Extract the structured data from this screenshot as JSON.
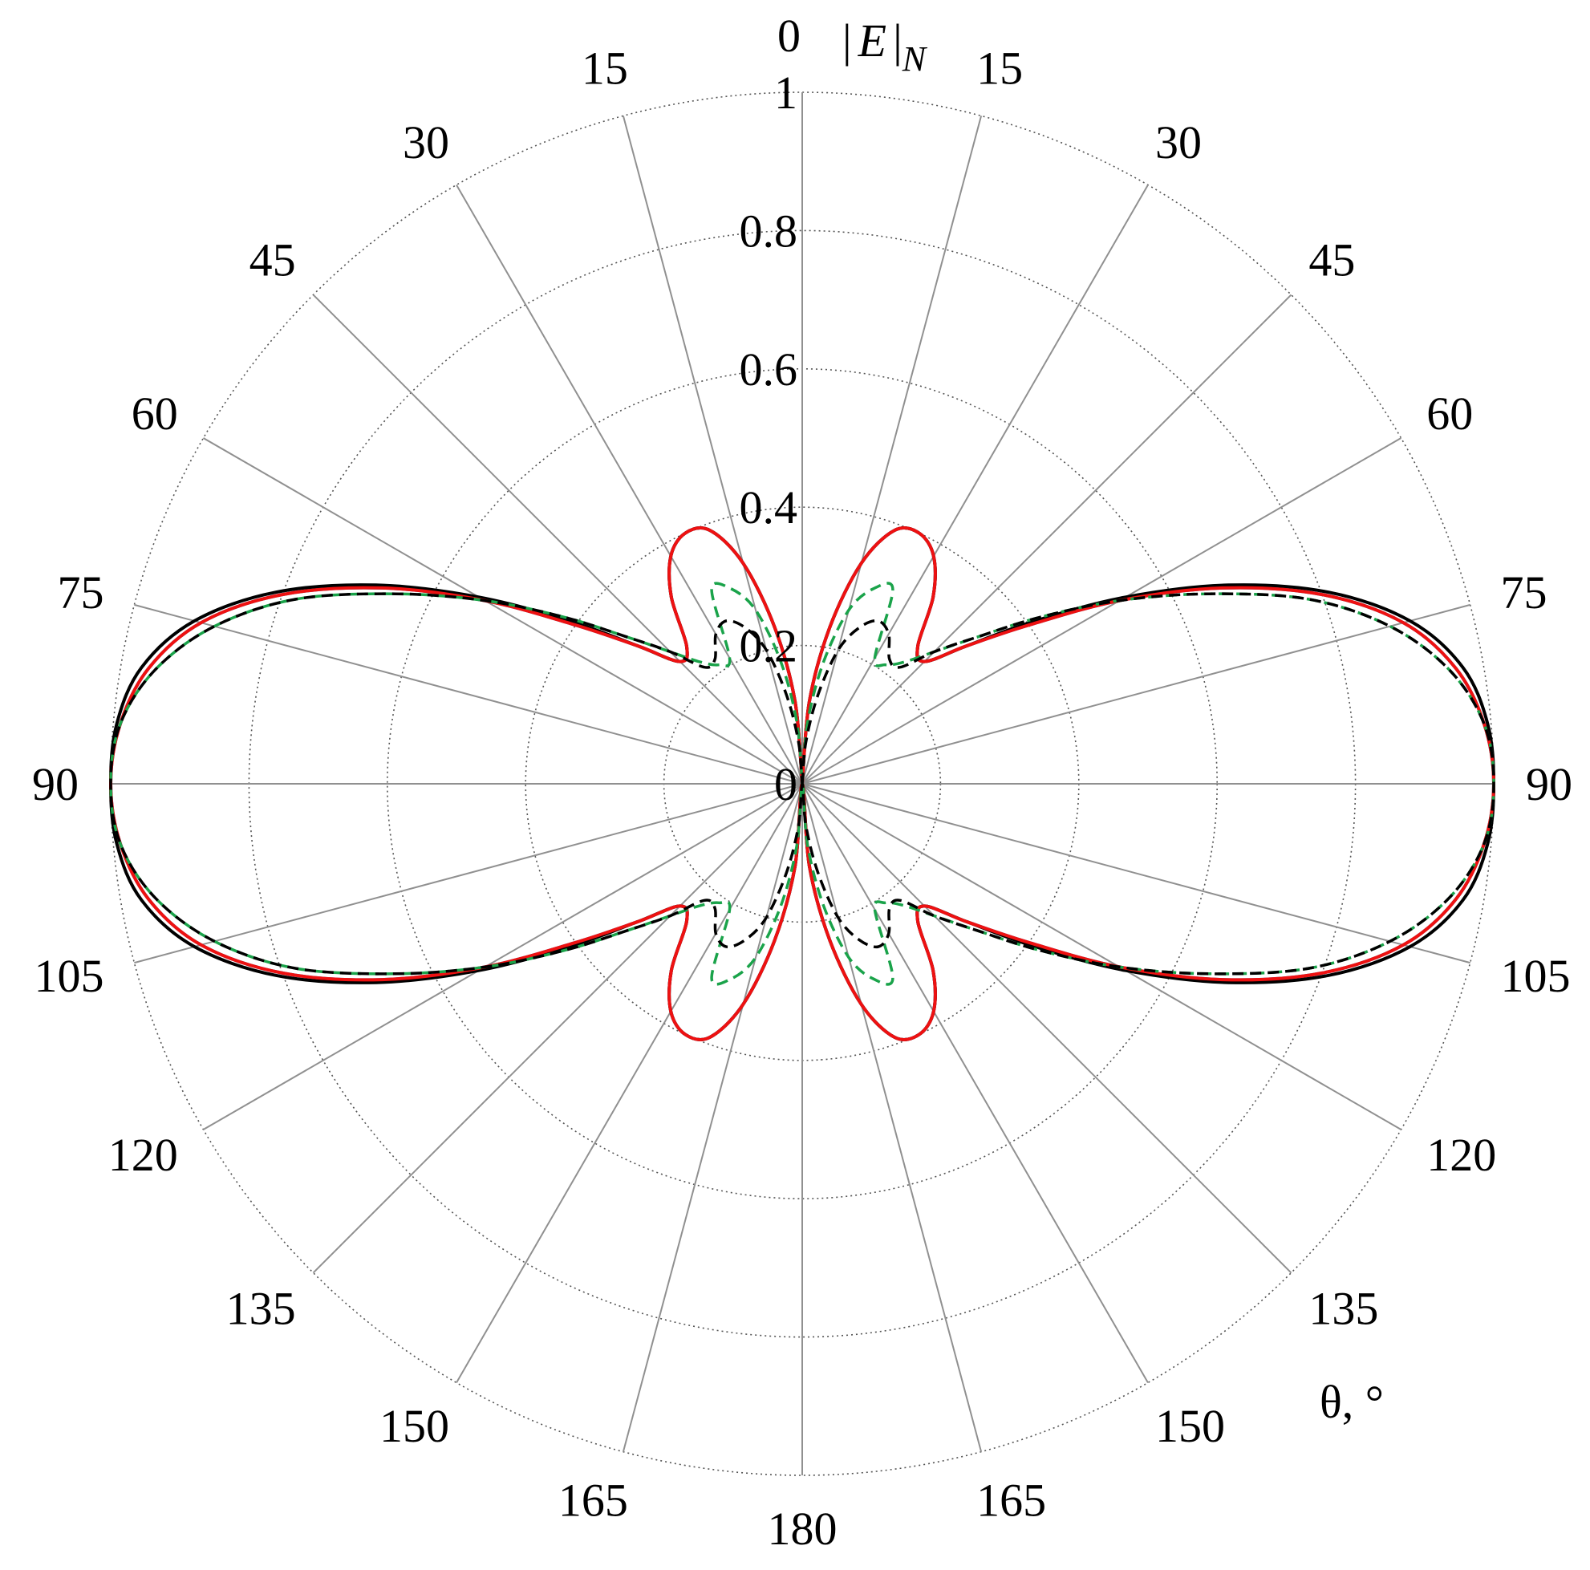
{
  "chart_data": {
    "type": "polar-line",
    "radial_axis_label": "|E|N",
    "radial_axis_label_parts": {
      "left_bar": "|",
      "letter": "E",
      "right_bar": "|",
      "subscript": "N"
    },
    "angular_axis_label": "θ, °",
    "radial_range": [
      0,
      1
    ],
    "radial_ticks": [
      "0",
      "0.2",
      "0.4",
      "0.6",
      "0.8",
      "1"
    ],
    "radial_tick_values": [
      0,
      0.2,
      0.4,
      0.6,
      0.8,
      1.0
    ],
    "angular_tick_values": [
      0,
      15,
      30,
      45,
      60,
      75,
      90,
      105,
      120,
      135,
      150,
      165,
      180
    ],
    "angular_ticks_left": [
      "0",
      "15",
      "30",
      "45",
      "60",
      "75",
      "90",
      "105",
      "120",
      "135",
      "150",
      "165",
      "180"
    ],
    "angular_ticks_right": [
      "15",
      "30",
      "45",
      "60",
      "75",
      "90",
      "105",
      "120",
      "135",
      "150",
      "165"
    ],
    "grid": true,
    "symmetry": "mirrored left/right and top/bottom about 90°",
    "series": [
      {
        "color": "#1f6fbf",
        "dash": "solid",
        "theta": [
          0,
          5,
          10,
          15,
          20,
          25,
          30,
          35,
          40,
          45,
          50,
          55,
          60,
          65,
          70,
          75,
          80,
          85,
          90
        ],
        "r": [
          0.0,
          0.12,
          0.23,
          0.33,
          0.39,
          0.4,
          0.38,
          0.33,
          0.26,
          0.25,
          0.31,
          0.4,
          0.53,
          0.67,
          0.8,
          0.9,
          0.96,
          0.99,
          1.0
        ]
      },
      {
        "color": "#000000",
        "dash": "solid",
        "theta": [
          0,
          5,
          10,
          15,
          20,
          25,
          30,
          35,
          40,
          45,
          50,
          55,
          60,
          65,
          70,
          75,
          80,
          85,
          90
        ],
        "r": [
          0.0,
          0.12,
          0.23,
          0.33,
          0.39,
          0.4,
          0.38,
          0.33,
          0.26,
          0.25,
          0.31,
          0.41,
          0.54,
          0.68,
          0.81,
          0.91,
          0.97,
          0.995,
          1.0
        ]
      },
      {
        "color": "#ee1111",
        "dash": "solid",
        "theta": [
          0,
          5,
          10,
          15,
          20,
          25,
          30,
          35,
          40,
          45,
          50,
          55,
          60,
          65,
          70,
          75,
          80,
          85,
          90
        ],
        "r": [
          0.0,
          0.12,
          0.23,
          0.33,
          0.39,
          0.4,
          0.38,
          0.33,
          0.26,
          0.25,
          0.31,
          0.4,
          0.53,
          0.67,
          0.8,
          0.9,
          0.96,
          0.99,
          1.0
        ]
      },
      {
        "color": "#1aa34a",
        "dash": "dashed",
        "theta": [
          0,
          5,
          10,
          15,
          20,
          25,
          30,
          35,
          40,
          45,
          50,
          55,
          60,
          65,
          70,
          75,
          80,
          85,
          90
        ],
        "r": [
          0.0,
          0.09,
          0.18,
          0.26,
          0.3,
          0.31,
          0.21,
          0.21,
          0.23,
          0.27,
          0.33,
          0.42,
          0.53,
          0.65,
          0.78,
          0.88,
          0.95,
          0.99,
          1.0
        ]
      },
      {
        "color": "#000000",
        "dash": "dashed",
        "theta": [
          0,
          5,
          10,
          15,
          20,
          25,
          30,
          35,
          40,
          45,
          50,
          55,
          60,
          65,
          70,
          75,
          80,
          85,
          90
        ],
        "r": [
          0.0,
          0.06,
          0.13,
          0.2,
          0.24,
          0.26,
          0.25,
          0.22,
          0.22,
          0.27,
          0.33,
          0.42,
          0.53,
          0.65,
          0.78,
          0.88,
          0.95,
          0.99,
          1.0
        ]
      }
    ]
  }
}
